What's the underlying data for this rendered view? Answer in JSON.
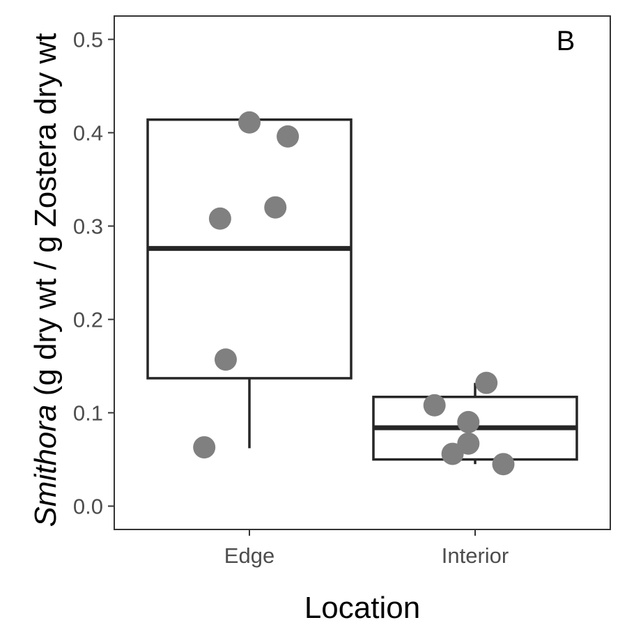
{
  "chart_data": {
    "type": "box",
    "panel_label": "B",
    "xlabel": "Location",
    "ylabel": {
      "italic_part": "Smithora",
      "rest": " (g dry wt / g Zostera dry wt"
    },
    "ylim": [
      -0.025,
      0.525
    ],
    "yticks": [
      "0.0",
      "0.1",
      "0.2",
      "0.3",
      "0.4",
      "0.5"
    ],
    "categories": [
      "Edge",
      "Interior"
    ],
    "boxes": [
      {
        "category": "Edge",
        "whisker_low": 0.062,
        "q1": 0.137,
        "median": 0.276,
        "q3": 0.414,
        "whisker_high": 0.414
      },
      {
        "category": "Interior",
        "whisker_low": 0.045,
        "q1": 0.05,
        "median": 0.084,
        "q3": 0.117,
        "whisker_high": 0.132
      }
    ],
    "points": [
      {
        "category": "Edge",
        "jitter": 0.0,
        "y": 0.411
      },
      {
        "category": "Edge",
        "jitter": 0.17,
        "y": 0.396
      },
      {
        "category": "Edge",
        "jitter": 0.115,
        "y": 0.32
      },
      {
        "category": "Edge",
        "jitter": -0.13,
        "y": 0.308
      },
      {
        "category": "Edge",
        "jitter": -0.105,
        "y": 0.157
      },
      {
        "category": "Edge",
        "jitter": -0.2,
        "y": 0.063
      },
      {
        "category": "Interior",
        "jitter": 0.05,
        "y": 0.132
      },
      {
        "category": "Interior",
        "jitter": -0.18,
        "y": 0.108
      },
      {
        "category": "Interior",
        "jitter": -0.03,
        "y": 0.09
      },
      {
        "category": "Interior",
        "jitter": -0.03,
        "y": 0.067
      },
      {
        "category": "Interior",
        "jitter": -0.1,
        "y": 0.056
      },
      {
        "category": "Interior",
        "jitter": 0.125,
        "y": 0.045
      }
    ],
    "grid": false,
    "colors": {
      "box_line": "#262626",
      "point": "#808080",
      "panel_border": "#333333",
      "tick_label": "#4d4d4d"
    }
  }
}
